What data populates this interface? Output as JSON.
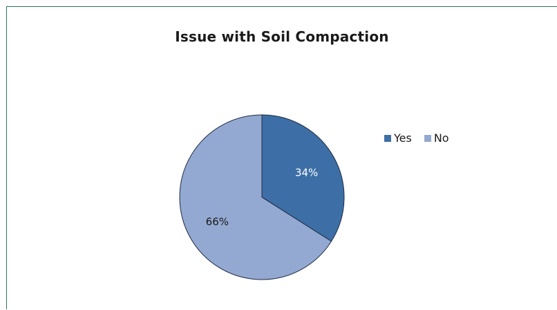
{
  "chart_data": {
    "type": "pie",
    "title": "Issue with Soil Compaction",
    "categories": [
      "Yes",
      "No"
    ],
    "values": [
      34,
      66
    ],
    "labels": [
      "34%",
      "66%"
    ],
    "colors": [
      "#3d6fa6",
      "#93a9d1"
    ],
    "label_colors": [
      "#ffffff",
      "#1a1a1a"
    ],
    "edge_color": "#1f2a44",
    "legend_position": "right",
    "start_angle": "top, clockwise"
  }
}
